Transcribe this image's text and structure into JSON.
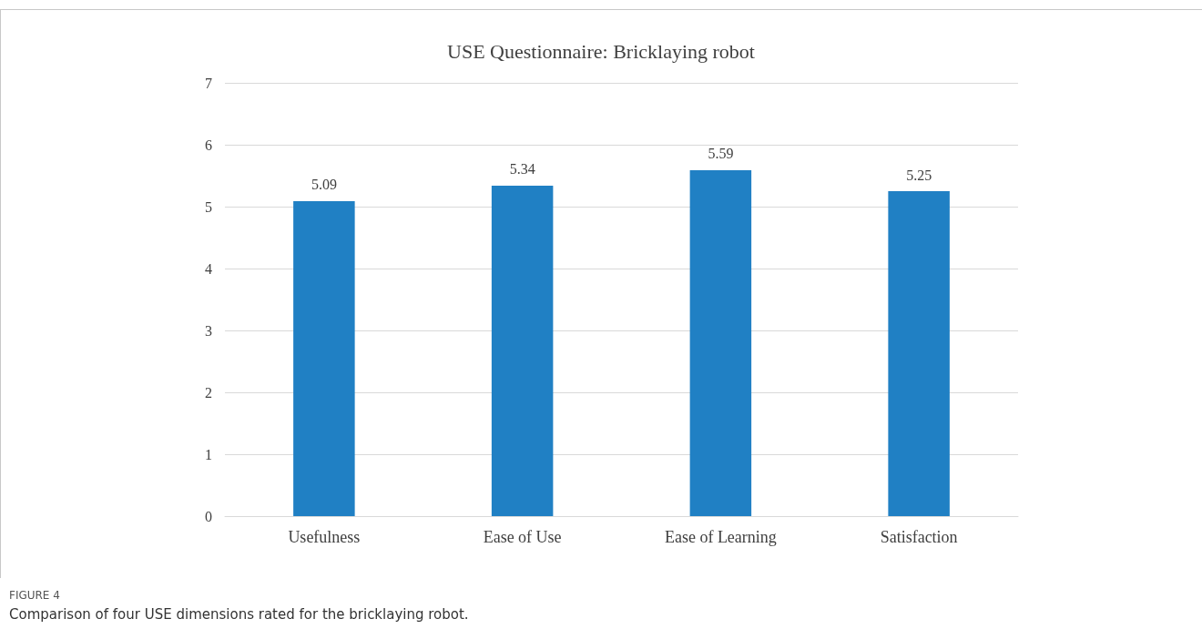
{
  "chart_data": {
    "type": "bar",
    "title": "USE Questionnaire: Bricklaying robot",
    "categories": [
      "Usefulness",
      "Ease of Use",
      "Ease of Learning",
      "Satisfaction"
    ],
    "values": [
      5.09,
      5.34,
      5.59,
      5.25
    ],
    "color": "#2080c4",
    "ylim": [
      0,
      7
    ],
    "yticks": [
      0,
      1,
      2,
      3,
      4,
      5,
      6,
      7
    ],
    "grid": "y",
    "data_labels": true,
    "annotations": [
      "FIGURE 4",
      "Comparison of four USE dimensions rated for the bricklaying robot."
    ]
  }
}
